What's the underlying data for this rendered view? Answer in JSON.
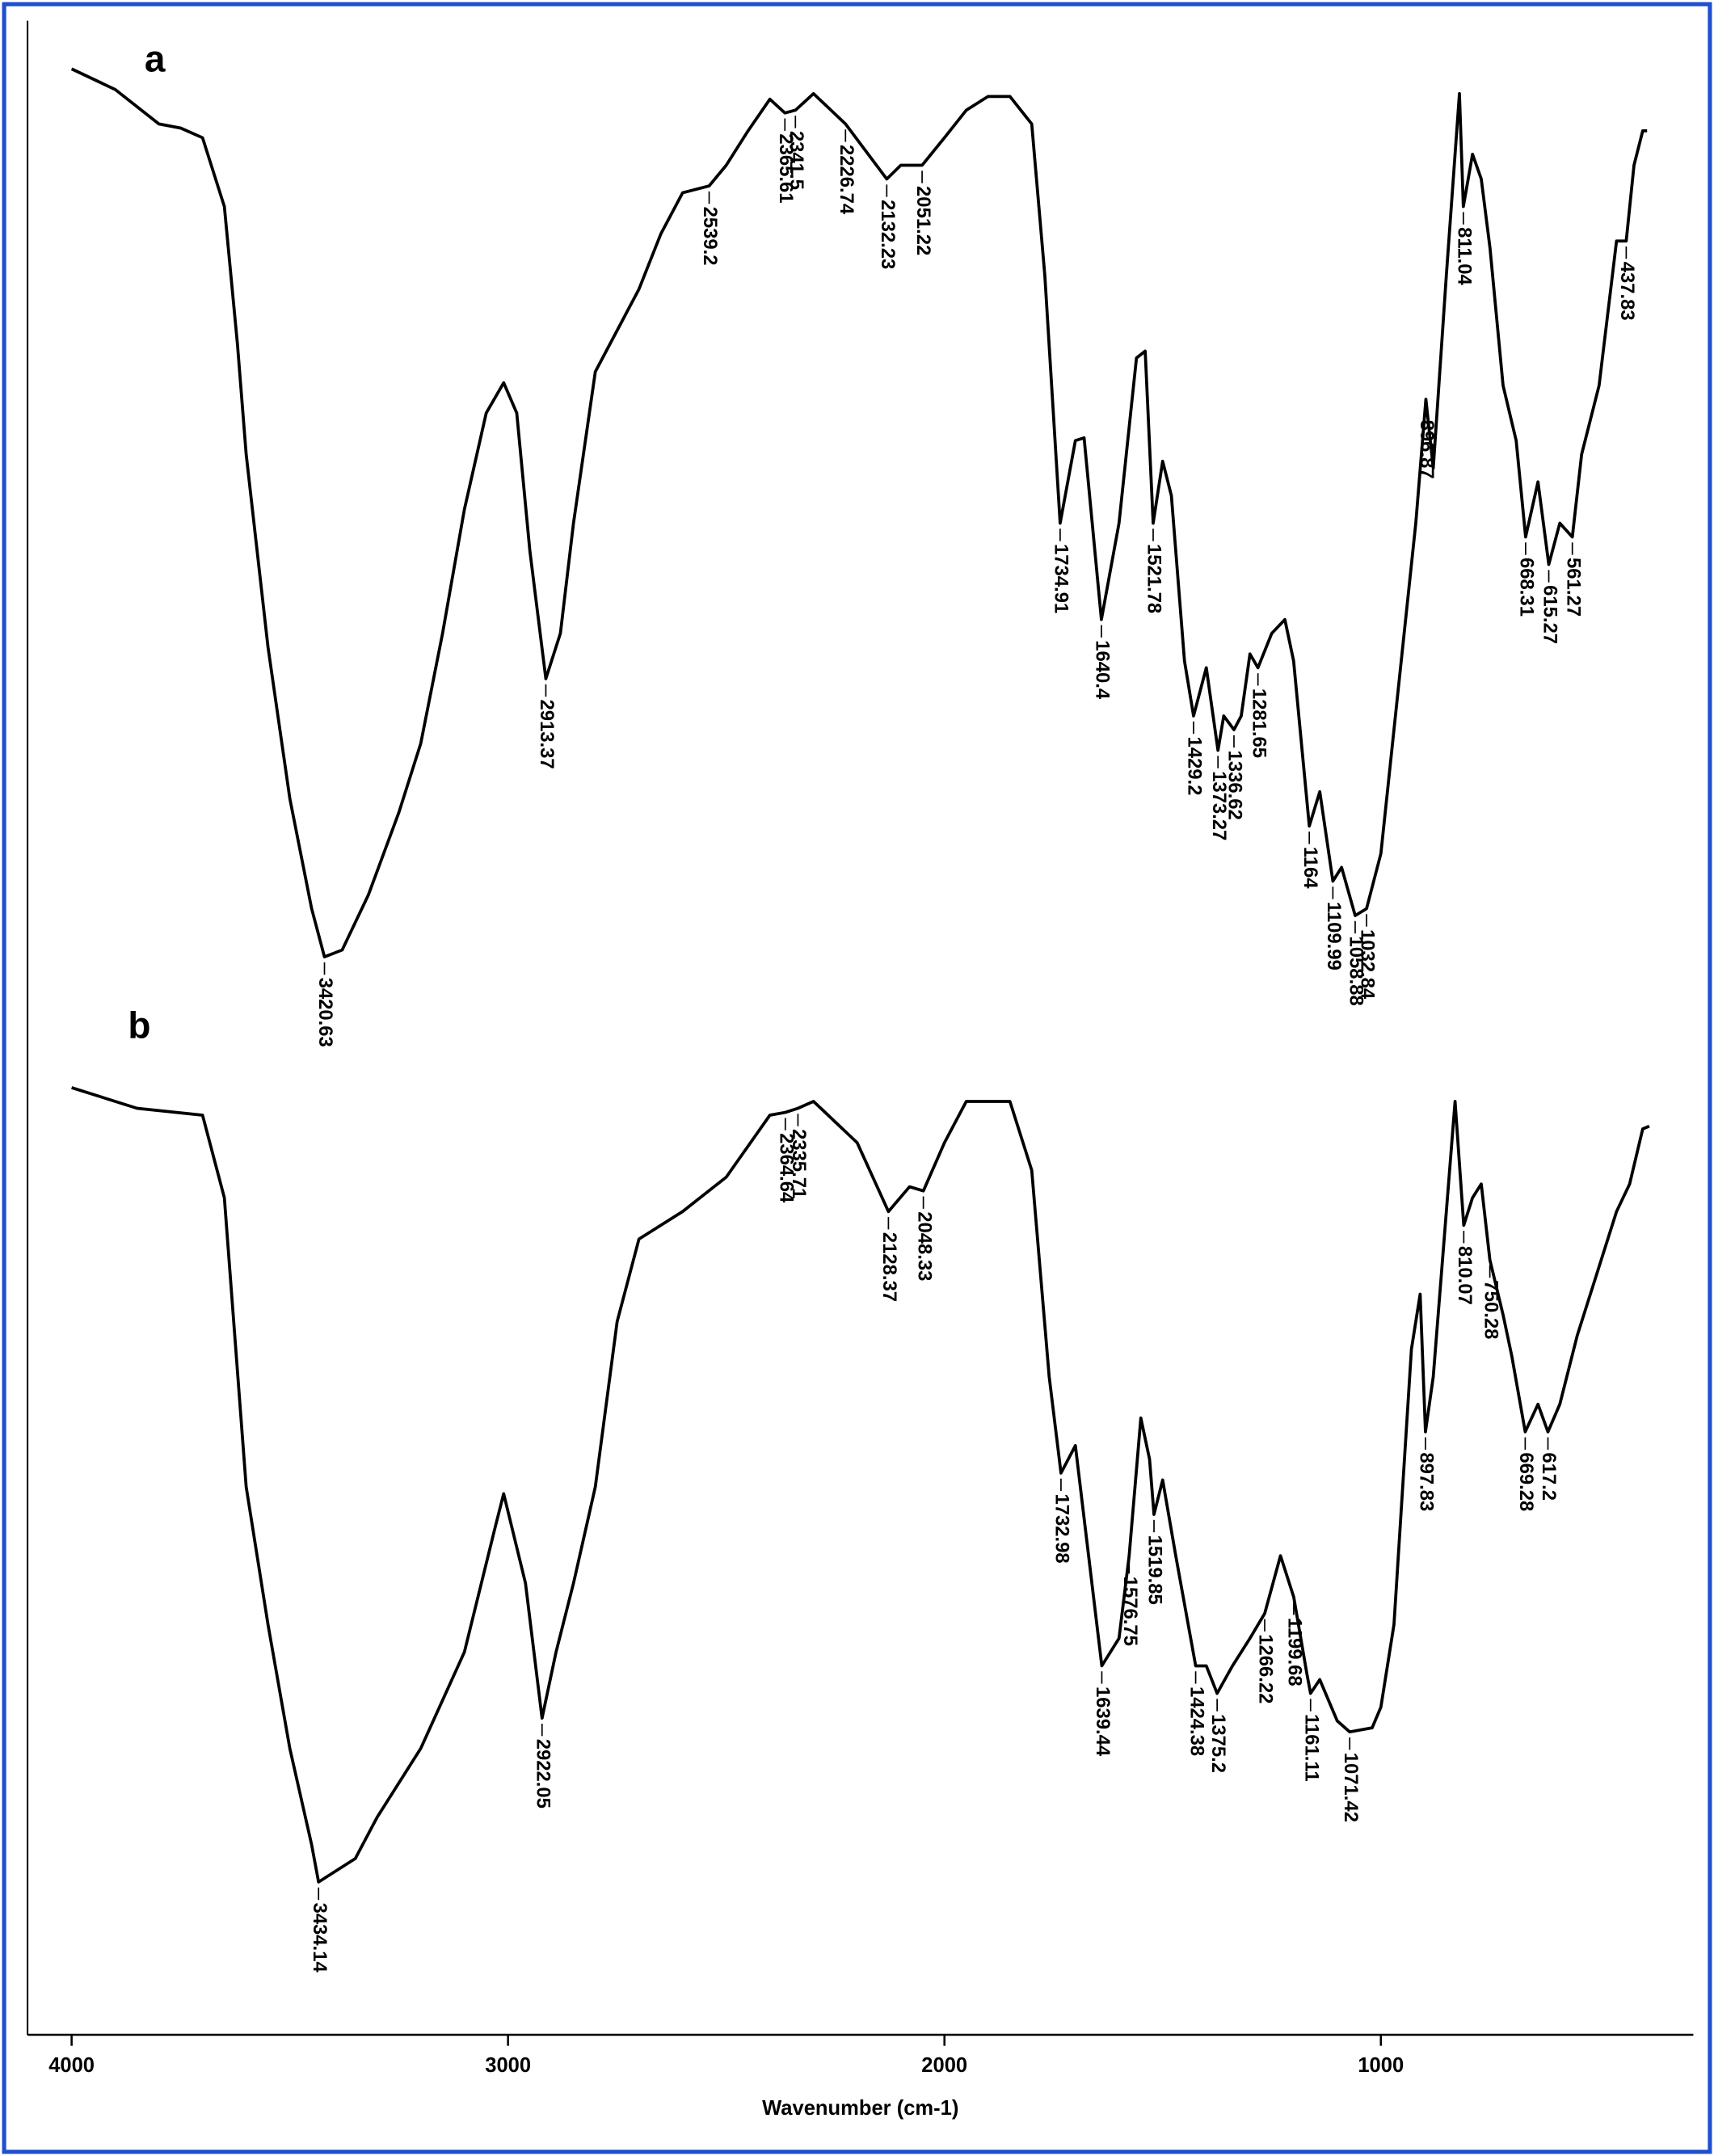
{
  "chart_data": {
    "type": "line",
    "xlabel": "Wavenumber (cm-1)",
    "xlim": [
      4101,
      284
    ],
    "xticks": [
      4000,
      3000,
      2000,
      1000
    ],
    "ylim": [
      0,
      1463
    ],
    "series": [
      {
        "name": "a",
        "color": "#000000",
        "x": [
          4000,
          3900,
          3800,
          3750,
          3700,
          3650,
          3620,
          3600,
          3550,
          3500,
          3450,
          3420.63,
          3380,
          3320,
          3250,
          3200,
          3150,
          3100,
          3050,
          3010,
          2980,
          2950,
          2913.37,
          2880,
          2850,
          2800,
          2750,
          2700,
          2650,
          2600,
          2539.2,
          2500,
          2450,
          2400,
          2365.61,
          2341.5,
          2300,
          2226.74,
          2132.23,
          2100,
          2051.22,
          2000,
          1950,
          1900,
          1850,
          1800,
          1770,
          1734.91,
          1700,
          1680,
          1640.4,
          1600,
          1560,
          1540,
          1521.78,
          1500,
          1480,
          1450,
          1429.2,
          1400,
          1373.27,
          1360,
          1336.62,
          1320,
          1300,
          1281.65,
          1250,
          1220,
          1200,
          1164,
          1140,
          1109.99,
          1090,
          1058.88,
          1032.84,
          1000,
          960,
          920,
          896.87,
          880,
          850,
          820,
          811.04,
          790,
          770,
          750,
          720,
          690,
          668.31,
          640,
          615.27,
          590,
          561.27,
          540,
          500,
          460,
          437.83,
          420,
          400,
          390
        ],
        "values": [
          1428,
          1413,
          1388,
          1385,
          1378,
          1328,
          1228,
          1148,
          1008,
          898,
          818,
          783,
          788,
          828,
          888,
          938,
          1018,
          1108,
          1178,
          1200,
          1178,
          1078,
          985,
          1018,
          1098,
          1208,
          1238,
          1268,
          1308,
          1338,
          1343,
          1358,
          1383,
          1406,
          1396,
          1398,
          1410,
          1388,
          1348,
          1358,
          1358,
          1378,
          1398,
          1408,
          1408,
          1388,
          1278,
          1098,
          1158,
          1160,
          1028,
          1098,
          1218,
          1223,
          1098,
          1143,
          1118,
          998,
          958,
          993,
          933,
          958,
          948,
          958,
          1003,
          993,
          1018,
          1028,
          998,
          878,
          903,
          838,
          848,
          813,
          818,
          858,
          978,
          1098,
          1188,
          1138,
          1278,
          1410,
          1328,
          1366,
          1348,
          1298,
          1198,
          1158,
          1088,
          1128,
          1068,
          1098,
          1088,
          1148,
          1198,
          1303,
          1303,
          1358,
          1383,
          1383
        ],
        "peaks": [
          3420.63,
          2913.37,
          2539.2,
          2365.61,
          2341.5,
          2226.74,
          2132.23,
          2051.22,
          1734.91,
          1640.4,
          1521.78,
          1429.2,
          1373.27,
          1336.62,
          1281.65,
          1164,
          1109.99,
          1058.88,
          1032.84,
          896.87,
          811.04,
          668.31,
          615.27,
          561.27,
          437.83
        ]
      },
      {
        "name": "b",
        "color": "#000000",
        "x": [
          4000,
          3850,
          3700,
          3650,
          3600,
          3550,
          3500,
          3450,
          3434.14,
          3350,
          3300,
          3200,
          3100,
          3030,
          3010,
          2960,
          2922.05,
          2890,
          2850,
          2800,
          2750,
          2700,
          2600,
          2500,
          2400,
          2364.64,
          2335.71,
          2300,
          2200,
          2128.37,
          2080,
          2048.33,
          2000,
          1950,
          1850,
          1800,
          1760,
          1732.98,
          1700,
          1639.44,
          1600,
          1576.75,
          1550,
          1530,
          1519.85,
          1500,
          1470,
          1424.38,
          1400,
          1375.2,
          1340,
          1300,
          1266.22,
          1230,
          1199.68,
          1170,
          1161.11,
          1140,
          1100,
          1071.42,
          1020,
          1000,
          970,
          930,
          910,
          897.83,
          880,
          850,
          830,
          810.07,
          790,
          770,
          750.28,
          720,
          700,
          669.28,
          640,
          617.2,
          590,
          550,
          500,
          460,
          430,
          400,
          385
        ],
        "values": [
          688,
          673,
          668,
          608,
          398,
          298,
          208,
          138,
          111,
          128,
          158,
          208,
          278,
          368,
          393,
          328,
          230,
          278,
          328,
          398,
          518,
          578,
          598,
          623,
          668,
          670,
          673,
          678,
          648,
          598,
          616,
          613,
          648,
          678,
          678,
          628,
          478,
          408,
          428,
          268,
          288,
          348,
          448,
          418,
          378,
          403,
          348,
          268,
          268,
          248,
          268,
          288,
          306,
          348,
          318,
          263,
          248,
          258,
          228,
          220,
          223,
          238,
          298,
          498,
          538,
          438,
          478,
          598,
          678,
          588,
          608,
          618,
          563,
          523,
          493,
          438,
          458,
          438,
          458,
          508,
          558,
          598,
          618,
          658,
          660
        ],
        "peaks": [
          3434.14,
          2922.05,
          2364.64,
          2335.71,
          2128.37,
          2048.33,
          1732.98,
          1639.44,
          1576.75,
          1519.85,
          1424.38,
          1375.2,
          1266.22,
          1199.68,
          1161.11,
          1071.42,
          897.83,
          810.07,
          750.28,
          669.28,
          617.2
        ]
      }
    ]
  }
}
